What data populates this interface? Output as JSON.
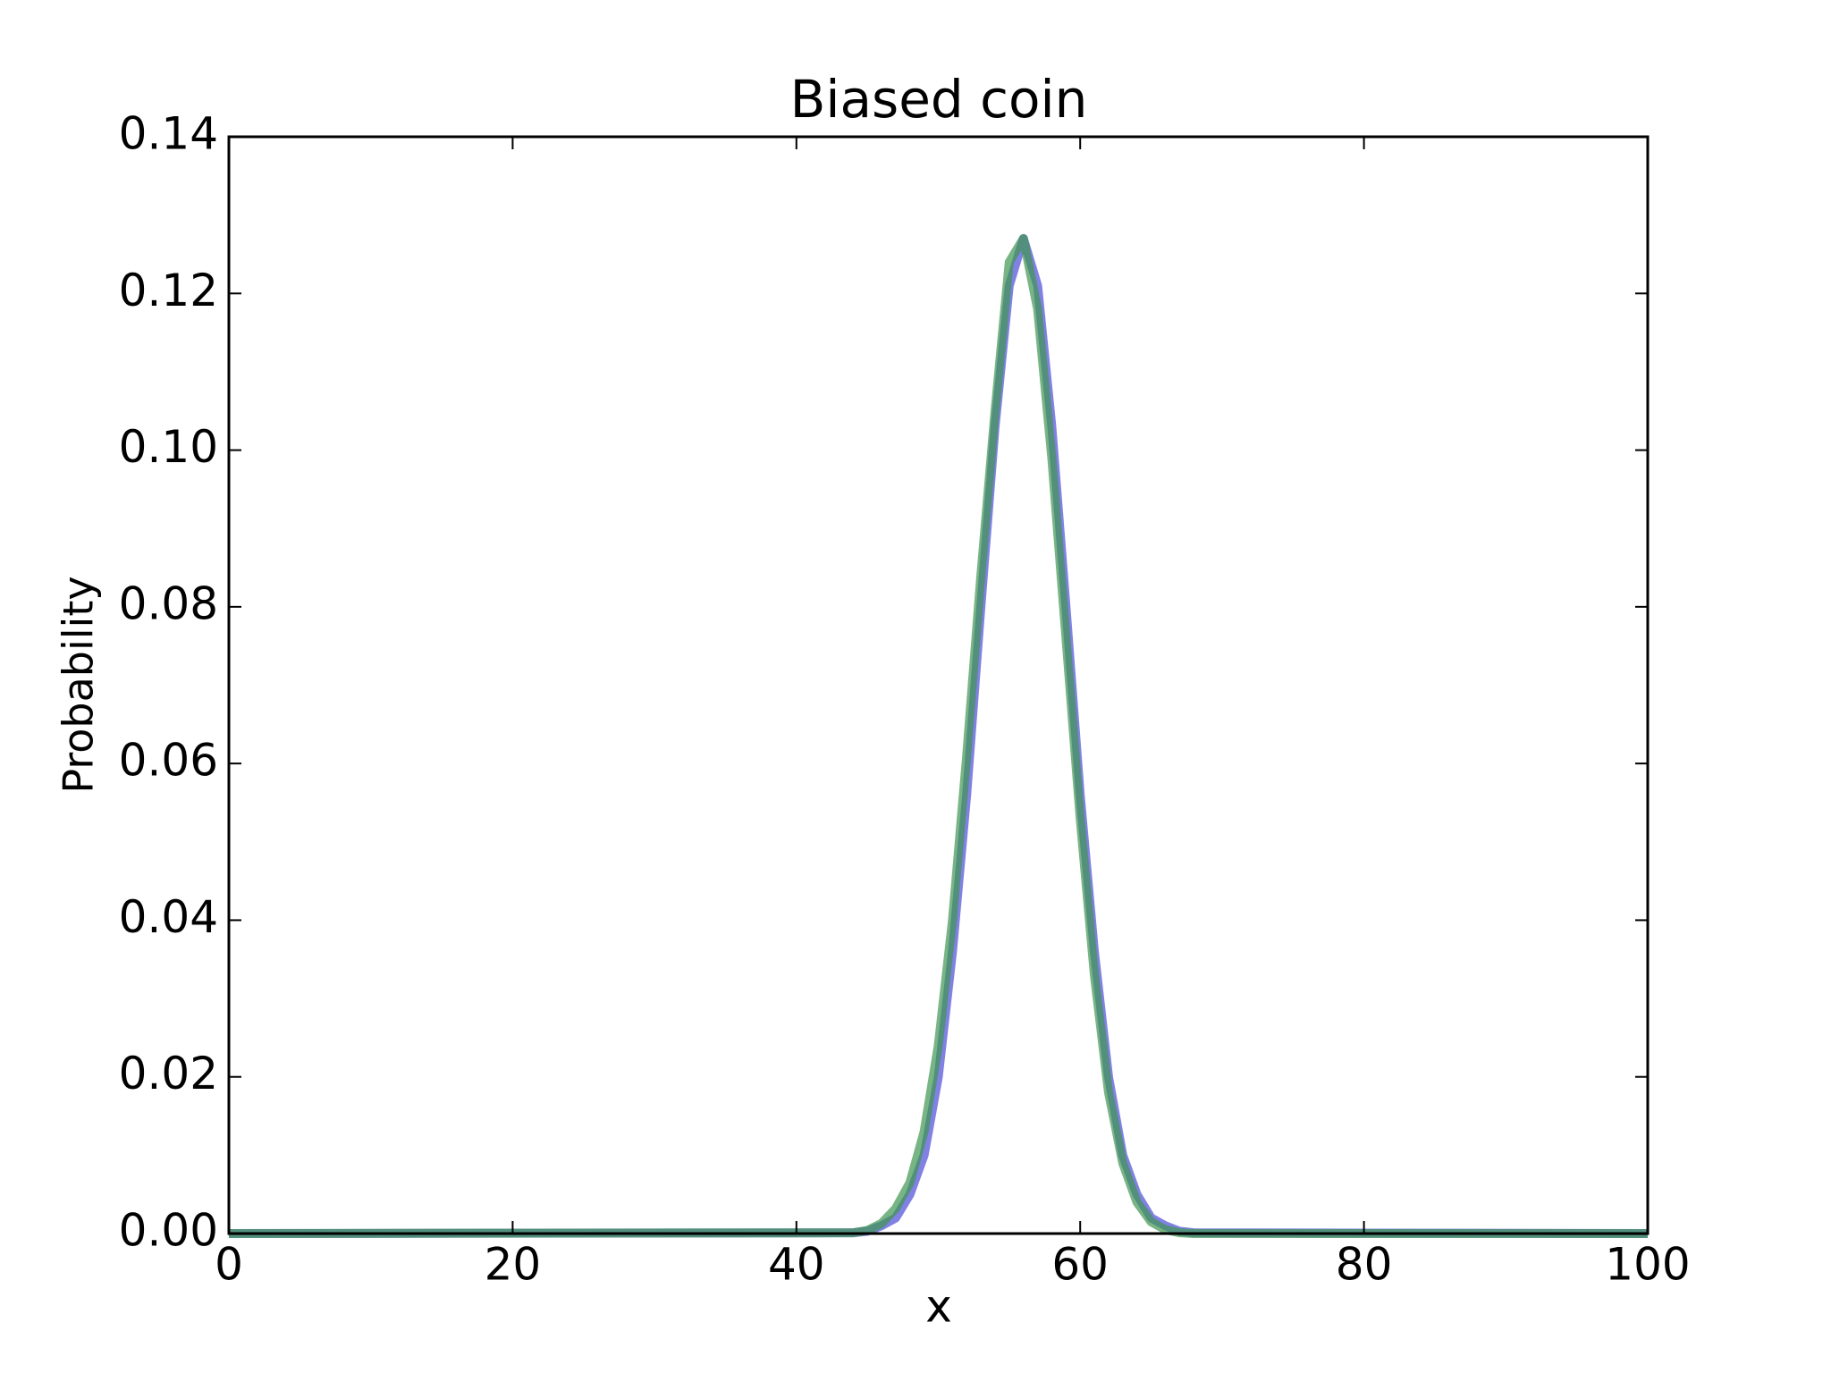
{
  "chart_data": {
    "type": "line",
    "title": "Biased coin",
    "x_label": "x",
    "y_label": "Probability",
    "x": [
      0,
      44,
      45,
      46,
      47,
      48,
      49,
      50,
      51,
      52,
      53,
      54,
      55,
      56,
      57,
      58,
      59,
      60,
      61,
      62,
      63,
      64,
      65,
      66,
      67,
      68,
      100
    ],
    "series": [
      {
        "color": "#4b4bd8",
        "values": [
          0,
          0.0001,
          0.0003,
          0.001,
          0.002,
          0.005,
          0.01,
          0.02,
          0.036,
          0.056,
          0.08,
          0.103,
          0.121,
          0.127,
          0.121,
          0.103,
          0.08,
          0.056,
          0.036,
          0.02,
          0.01,
          0.005,
          0.002,
          0.001,
          0.0003,
          0.0001,
          0
        ]
      },
      {
        "color": "#3f9650",
        "values": [
          0,
          0.0001,
          0.0004,
          0.0013,
          0.0032,
          0.0065,
          0.013,
          0.024,
          0.04,
          0.061,
          0.084,
          0.105,
          0.124,
          0.127,
          0.118,
          0.099,
          0.076,
          0.053,
          0.033,
          0.018,
          0.009,
          0.004,
          0.0015,
          0.0005,
          0.0001,
          0,
          0
        ]
      }
    ],
    "xlim": [
      0,
      100
    ],
    "xticks": [
      0,
      20,
      40,
      60,
      80,
      100
    ],
    "ylim": [
      0,
      0.14
    ],
    "yticks": [
      {
        "value": 0,
        "label": "0.00"
      },
      {
        "value": 0.02,
        "label": "0.02"
      },
      {
        "value": 0.04,
        "label": "0.04"
      },
      {
        "value": 0.06,
        "label": "0.06"
      },
      {
        "value": 0.08,
        "label": "0.08"
      },
      {
        "value": 0.1,
        "label": "0.10"
      },
      {
        "value": 0.12,
        "label": "0.12"
      },
      {
        "value": 0.14,
        "label": "0.14"
      }
    ],
    "grid": false
  }
}
